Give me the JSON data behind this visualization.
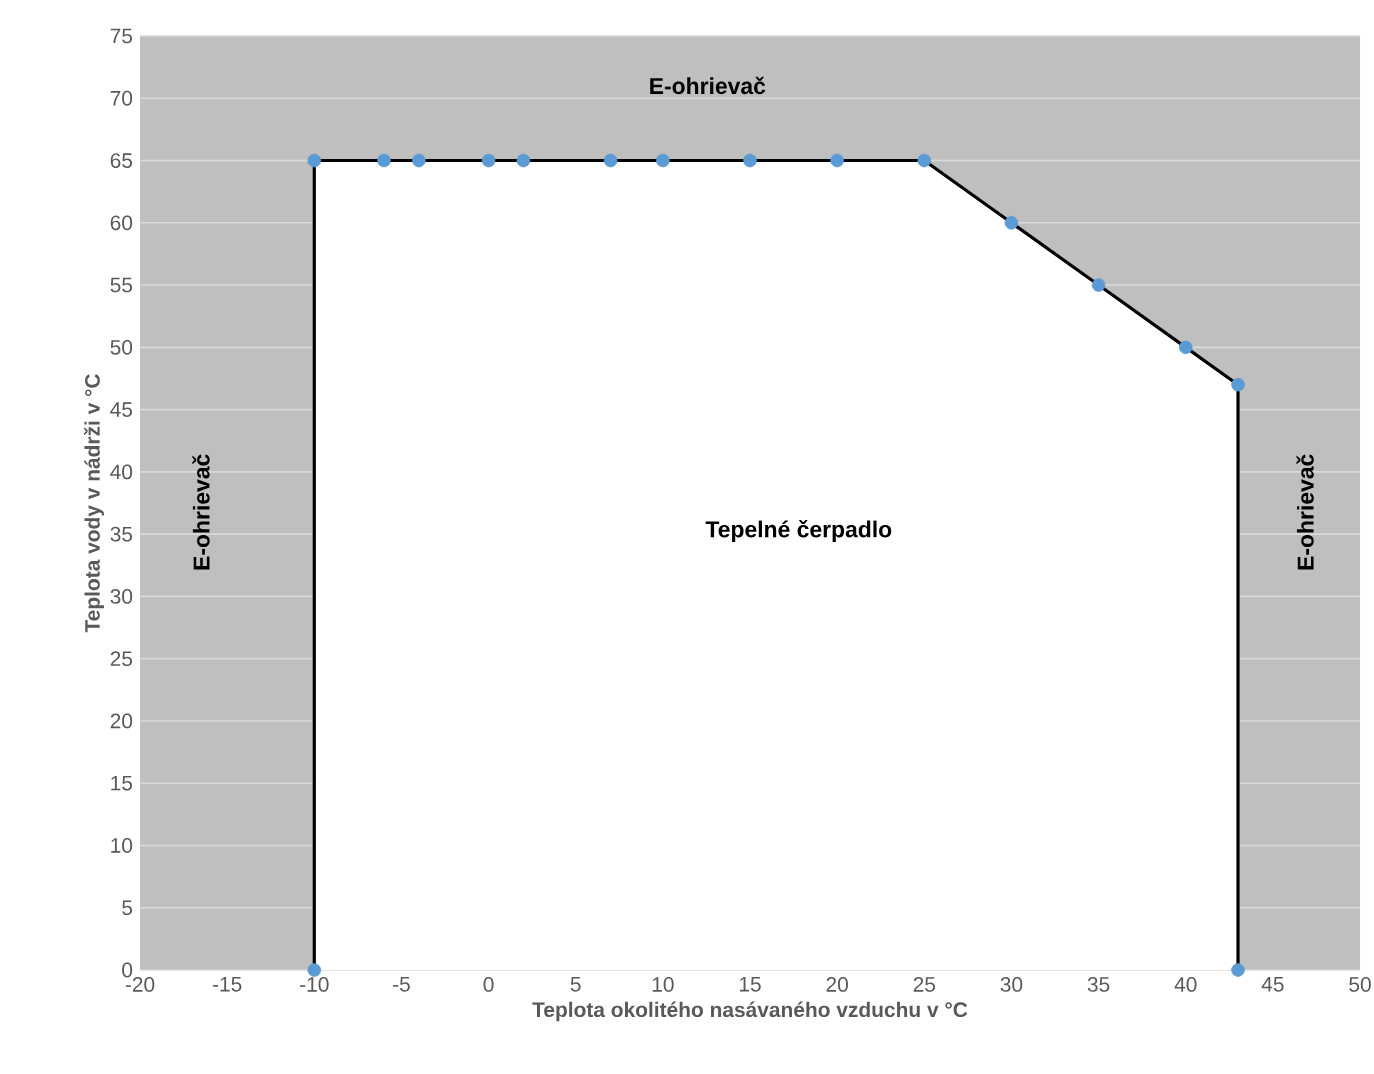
{
  "chart_data": {
    "type": "area",
    "xlabel": "Teplota okolitého nasávaného vzduchu v °C",
    "ylabel": "Teplota vody v nádrži v °C",
    "x": [
      -10,
      -10,
      -6,
      -4,
      0,
      2,
      7,
      10,
      15,
      20,
      25,
      30,
      35,
      40,
      43,
      43
    ],
    "series": [
      {
        "color": "#000000",
        "values": [
          0,
          65,
          65,
          65,
          65,
          65,
          65,
          65,
          65,
          65,
          65,
          60,
          55,
          50,
          47,
          0
        ]
      },
      {
        "type": "scatter",
        "color": "#5b9bd5",
        "marker": "circle",
        "values": [
          0,
          65,
          65,
          65,
          65,
          65,
          65,
          65,
          65,
          65,
          65,
          60,
          55,
          50,
          47,
          0
        ]
      }
    ],
    "xlim": [
      -20,
      50
    ],
    "xticks": [
      -20,
      -15,
      -10,
      -5,
      0,
      5,
      10,
      15,
      20,
      25,
      30,
      35,
      40,
      45,
      50
    ],
    "ylim": [
      0,
      75
    ],
    "yticks": [
      0,
      5,
      10,
      15,
      20,
      25,
      30,
      35,
      40,
      45,
      50,
      55,
      60,
      65,
      70,
      75
    ],
    "grid": "y",
    "annotations": [
      "E-ohrievač",
      "E-ohrievač",
      "E-ohrievač",
      "Tepelné čerpadlo"
    ]
  }
}
